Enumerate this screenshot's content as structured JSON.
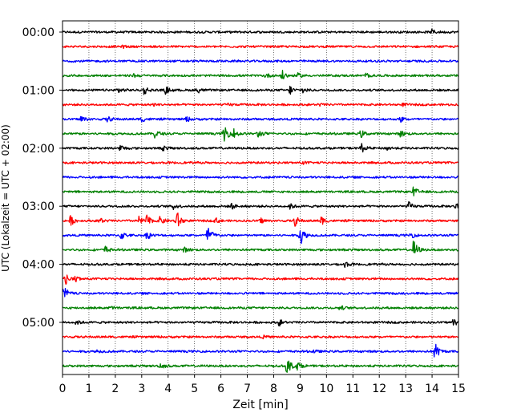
{
  "chart_data": {
    "type": "line",
    "title": "",
    "xlabel": "Zeit  [min]",
    "ylabel": "UTC (Lokalzeit = UTC + 02:00)",
    "xlim": [
      0,
      15
    ],
    "x_ticks": [
      "0",
      "1",
      "2",
      "3",
      "4",
      "5",
      "6",
      "7",
      "8",
      "9",
      "10",
      "11",
      "12",
      "13",
      "14",
      "15"
    ],
    "y_ticks": [
      {
        "label": "00:00",
        "row": 0
      },
      {
        "label": "01:00",
        "row": 4
      },
      {
        "label": "02:00",
        "row": 8
      },
      {
        "label": "03:00",
        "row": 12
      },
      {
        "label": "04:00",
        "row": 16
      },
      {
        "label": "05:00",
        "row": 20
      }
    ],
    "row_minutes": 15,
    "grid": "vertical dotted at each minute",
    "colors": [
      "#000000",
      "#ff0000",
      "#0000ff",
      "#008000"
    ],
    "rows": [
      {
        "start": "00:00",
        "color": "#000000",
        "events": [
          {
            "t": 14.0,
            "amp": 0.25
          }
        ]
      },
      {
        "start": "00:15",
        "color": "#ff0000",
        "events": [
          {
            "t": 2.3,
            "amp": 0.12
          }
        ]
      },
      {
        "start": "00:30",
        "color": "#0000ff",
        "events": []
      },
      {
        "start": "00:45",
        "color": "#008000",
        "events": [
          {
            "t": 2.7,
            "amp": 0.2
          },
          {
            "t": 7.7,
            "amp": 0.25
          },
          {
            "t": 8.3,
            "amp": 0.6
          },
          {
            "t": 8.9,
            "amp": 0.25
          },
          {
            "t": 11.5,
            "amp": 0.25
          }
        ]
      },
      {
        "start": "01:00",
        "color": "#000000",
        "events": [
          {
            "t": 2.1,
            "amp": 0.35
          },
          {
            "t": 3.1,
            "amp": 0.5
          },
          {
            "t": 3.9,
            "amp": 0.4
          },
          {
            "t": 5.1,
            "amp": 0.3
          },
          {
            "t": 8.6,
            "amp": 0.5
          },
          {
            "t": 9.1,
            "amp": 0.3
          }
        ]
      },
      {
        "start": "01:15",
        "color": "#ff0000",
        "events": [
          {
            "t": 3.4,
            "amp": 0.12
          },
          {
            "t": 6.3,
            "amp": 0.12
          },
          {
            "t": 9.7,
            "amp": 0.12
          },
          {
            "t": 12.9,
            "amp": 0.12
          }
        ]
      },
      {
        "start": "01:30",
        "color": "#0000ff",
        "events": [
          {
            "t": 0.7,
            "amp": 0.4
          },
          {
            "t": 1.7,
            "amp": 0.3
          },
          {
            "t": 3.0,
            "amp": 0.3
          },
          {
            "t": 4.7,
            "amp": 0.25
          },
          {
            "t": 12.8,
            "amp": 0.3
          }
        ]
      },
      {
        "start": "01:45",
        "color": "#008000",
        "events": [
          {
            "t": 3.5,
            "amp": 0.5
          },
          {
            "t": 6.1,
            "amp": 1.3
          },
          {
            "t": 6.5,
            "amp": 0.5
          },
          {
            "t": 7.4,
            "amp": 0.45
          },
          {
            "t": 11.3,
            "amp": 0.4
          },
          {
            "t": 12.8,
            "amp": 0.35
          }
        ]
      },
      {
        "start": "02:00",
        "color": "#000000",
        "events": [
          {
            "t": 2.2,
            "amp": 0.35
          },
          {
            "t": 3.8,
            "amp": 0.25
          },
          {
            "t": 11.3,
            "amp": 0.55
          },
          {
            "t": 12.3,
            "amp": 0.25
          }
        ]
      },
      {
        "start": "02:15",
        "color": "#ff0000",
        "events": [
          {
            "t": 9.1,
            "amp": 0.12
          }
        ]
      },
      {
        "start": "02:30",
        "color": "#0000ff",
        "events": []
      },
      {
        "start": "02:45",
        "color": "#008000",
        "events": [
          {
            "t": 13.3,
            "amp": 0.55
          }
        ]
      },
      {
        "start": "03:00",
        "color": "#000000",
        "events": [
          {
            "t": 4.2,
            "amp": 0.3
          },
          {
            "t": 6.4,
            "amp": 0.3
          },
          {
            "t": 8.6,
            "amp": 0.3
          },
          {
            "t": 13.1,
            "amp": 0.45
          },
          {
            "t": 14.9,
            "amp": 0.35
          }
        ]
      },
      {
        "start": "03:15",
        "color": "#ff0000",
        "events": [
          {
            "t": 0.3,
            "amp": 0.5
          },
          {
            "t": 1.4,
            "amp": 0.35
          },
          {
            "t": 2.9,
            "amp": 0.45
          },
          {
            "t": 3.2,
            "amp": 0.55
          },
          {
            "t": 3.7,
            "amp": 0.45
          },
          {
            "t": 4.3,
            "amp": 1.3
          },
          {
            "t": 5.8,
            "amp": 0.3
          },
          {
            "t": 7.5,
            "amp": 0.3
          },
          {
            "t": 8.8,
            "amp": 0.55
          },
          {
            "t": 9.8,
            "amp": 0.45
          }
        ]
      },
      {
        "start": "03:30",
        "color": "#0000ff",
        "events": [
          {
            "t": 2.2,
            "amp": 0.5
          },
          {
            "t": 3.2,
            "amp": 0.45
          },
          {
            "t": 5.5,
            "amp": 1.3
          },
          {
            "t": 9.0,
            "amp": 1.3
          },
          {
            "t": 13.2,
            "amp": 0.3
          }
        ]
      },
      {
        "start": "03:45",
        "color": "#008000",
        "events": [
          {
            "t": 1.6,
            "amp": 0.4
          },
          {
            "t": 4.6,
            "amp": 0.25
          },
          {
            "t": 13.3,
            "amp": 1.1
          }
        ]
      },
      {
        "start": "04:00",
        "color": "#000000",
        "events": [
          {
            "t": 10.7,
            "amp": 0.3
          }
        ]
      },
      {
        "start": "04:15",
        "color": "#ff0000",
        "events": [
          {
            "t": 0.1,
            "amp": 0.6
          },
          {
            "t": 0.5,
            "amp": 0.3
          }
        ]
      },
      {
        "start": "04:30",
        "color": "#0000ff",
        "events": [
          {
            "t": 0.05,
            "amp": 0.8
          }
        ]
      },
      {
        "start": "04:45",
        "color": "#008000",
        "events": [
          {
            "t": 1.8,
            "amp": 0.15
          },
          {
            "t": 10.5,
            "amp": 0.25
          }
        ]
      },
      {
        "start": "05:00",
        "color": "#000000",
        "events": [
          {
            "t": 0.5,
            "amp": 0.25
          },
          {
            "t": 8.2,
            "amp": 0.35
          },
          {
            "t": 14.8,
            "amp": 0.4
          }
        ]
      },
      {
        "start": "05:15",
        "color": "#ff0000",
        "events": [
          {
            "t": 7.6,
            "amp": 0.12
          }
        ]
      },
      {
        "start": "05:30",
        "color": "#0000ff",
        "events": [
          {
            "t": 1.3,
            "amp": 0.15
          },
          {
            "t": 9.5,
            "amp": 0.15
          },
          {
            "t": 14.1,
            "amp": 1.0
          }
        ]
      },
      {
        "start": "05:45",
        "color": "#008000",
        "events": [
          {
            "t": 3.7,
            "amp": 0.35
          },
          {
            "t": 8.5,
            "amp": 1.1
          },
          {
            "t": 8.9,
            "amp": 0.45
          }
        ]
      }
    ]
  }
}
